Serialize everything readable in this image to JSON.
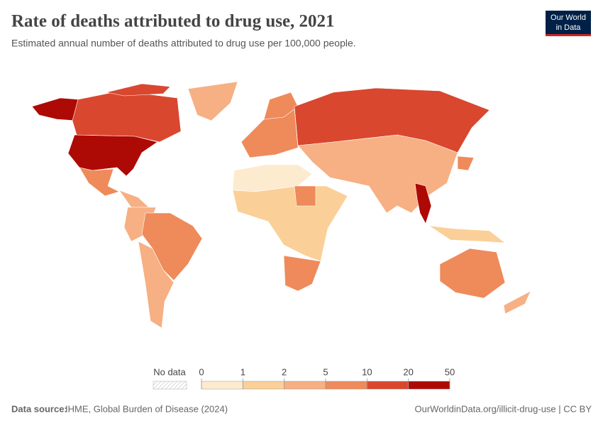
{
  "header": {
    "title": "Rate of deaths attributed to drug use, 2021",
    "subtitle": "Estimated annual number of deaths attributed to drug use per 100,000 people.",
    "logo": {
      "line1": "Our World",
      "line2": "in Data"
    }
  },
  "legend": {
    "no_data": "No data",
    "ticks": [
      0,
      1,
      2,
      5,
      10,
      20,
      50
    ],
    "colors": [
      "#fdebcf",
      "#fbcf98",
      "#f6b084",
      "#ef8a5b",
      "#d9472f",
      "#ae0a05"
    ]
  },
  "footer": {
    "source_label": "Data source:",
    "source": "IHME, Global Burden of Disease (2024)",
    "link": "OurWorldinData.org/illicit-drug-use | CC BY"
  }
}
